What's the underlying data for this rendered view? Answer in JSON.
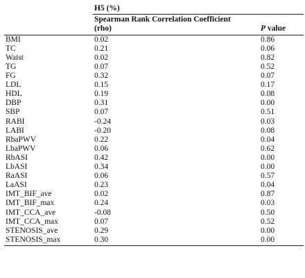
{
  "table": {
    "group_header": "H5 (%)",
    "col_header_line1": "Spearman Rank Correlation Coefficient",
    "col_header_line2": "(rho)",
    "pvalue_p": "P",
    "pvalue_rest": " value",
    "rows": [
      {
        "variable": "BMI",
        "rho": "0.02",
        "p": "0.86"
      },
      {
        "variable": "TC",
        "rho": "0.21",
        "p": "0.06"
      },
      {
        "variable": "Waist",
        "rho": "0.02",
        "p": "0.82"
      },
      {
        "variable": "TG",
        "rho": "0.07",
        "p": "0.52"
      },
      {
        "variable": "FG",
        "rho": "0.32",
        "p": "0.07"
      },
      {
        "variable": "LDL",
        "rho": "0.15",
        "p": "0.17"
      },
      {
        "variable": "HDL",
        "rho": "0.19",
        "p": "0.08"
      },
      {
        "variable": "DBP",
        "rho": "0.31",
        "p": "0.00"
      },
      {
        "variable": "SBP",
        "rho": "0.07",
        "p": "0.51"
      },
      {
        "variable": "RABI",
        "rho": "-0.24",
        "p": "0.03"
      },
      {
        "variable": "LABI",
        "rho": "-0.20",
        "p": "0.08"
      },
      {
        "variable": "RbaPWV",
        "rho": "0.22",
        "p": "0.04"
      },
      {
        "variable": "LbaPWV",
        "rho": "0.06",
        "p": "0.62"
      },
      {
        "variable": "RbASI",
        "rho": "0.42",
        "p": "0.00"
      },
      {
        "variable": "LbASI",
        "rho": "0.34",
        "p": "0.00"
      },
      {
        "variable": "RaASI",
        "rho": "0.06",
        "p": "0.57"
      },
      {
        "variable": "LaASI",
        "rho": "0.23",
        "p": "0.04"
      },
      {
        "variable": "IMT_BIF_ave",
        "rho": "0.02",
        "p": "0.87"
      },
      {
        "variable": "IMT_BIF_max",
        "rho": "0.24",
        "p": "0.03"
      },
      {
        "variable": "IMT_CCA_ave",
        "rho": "-0.08",
        "p": "0.50"
      },
      {
        "variable": "IMT_CCA_max",
        "rho": "0.07",
        "p": "0.52"
      },
      {
        "variable": "STENOSIS_ave",
        "rho": "0.29",
        "p": "0.00"
      },
      {
        "variable": "STENOSIS_max",
        "rho": "0.30",
        "p": "0.00"
      }
    ]
  }
}
